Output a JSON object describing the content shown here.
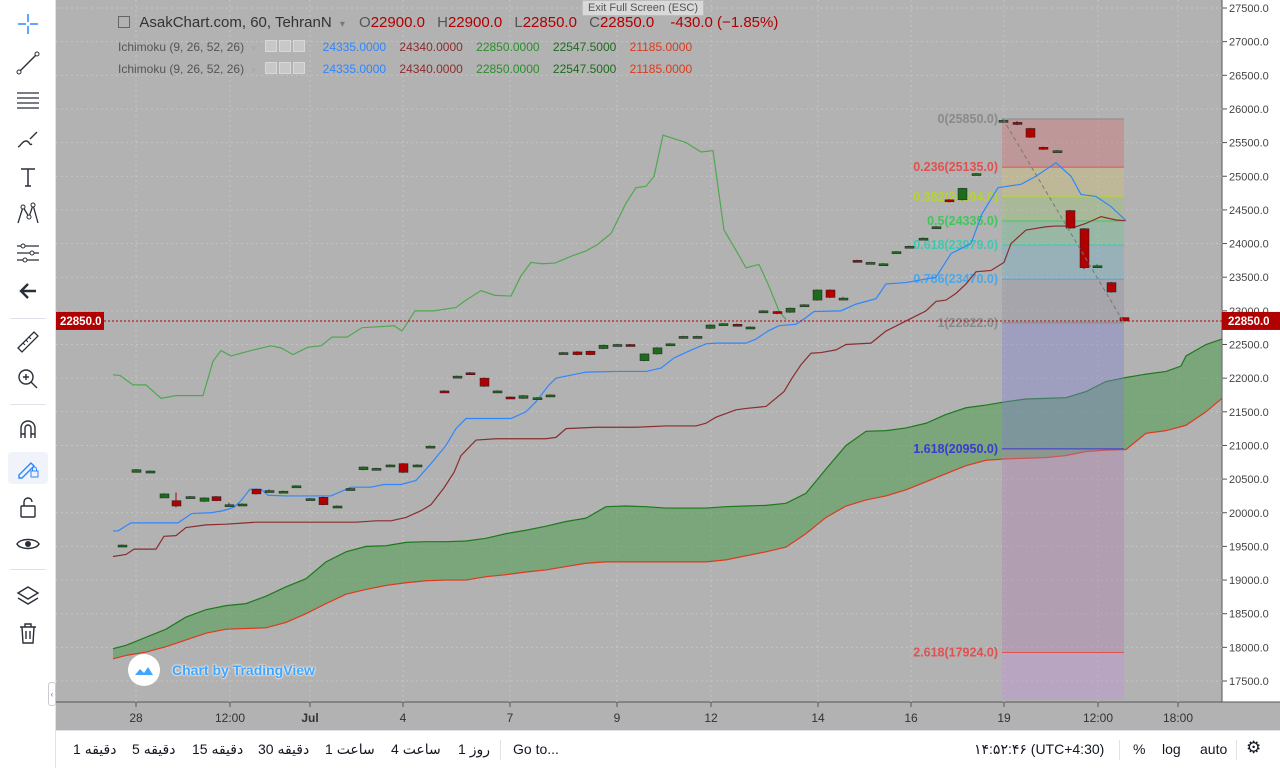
{
  "fullscreen_tip": "Exit Full Screen (ESC)",
  "legend": {
    "symbol": "AsakChart.com, 60, TehranN",
    "o_label": "O",
    "o_value": "22900.0",
    "h_label": "H",
    "h_value": "22900.0",
    "l_label": "L",
    "l_value": "22850.0",
    "c_label": "C",
    "c_value": "22850.0",
    "change": "-430.0 (−1.85%)",
    "indicators": [
      {
        "name": "Ichimoku (9, 26, 52, 26)",
        "v1": "24335.0000",
        "v2": "24340.0000",
        "v3": "22850.0000",
        "v4": "22547.5000",
        "v5": "21185.0000"
      },
      {
        "name": "Ichimoku (9, 26, 52, 26)",
        "v1": "24335.0000",
        "v2": "24340.0000",
        "v3": "22850.0000",
        "v4": "22547.5000",
        "v5": "21185.0000"
      }
    ]
  },
  "colors": {
    "background": "#b2b2b2",
    "bull": "#1e6b1e",
    "bear": "#b00000",
    "conversion": "#2f86ff",
    "base": "#8b2d2d",
    "lagging": "#4fa84f",
    "span_a": "#1d7a1d",
    "span_b": "#dd3a1c",
    "cloud": "#4f9a4f",
    "price_line": "#b00000"
  },
  "price_axis": [
    "27500.0",
    "27000.0",
    "26500.0",
    "26000.0",
    "25500.0",
    "25000.0",
    "24500.0",
    "24000.0",
    "23500.0",
    "23000.0",
    "22500.0",
    "22000.0",
    "21500.0",
    "21000.0",
    "20500.0",
    "20000.0",
    "19500.0",
    "19000.0",
    "18500.0",
    "18000.0",
    "17500.0"
  ],
  "current_price": "22850.0",
  "time_axis": [
    "28",
    "12:00",
    "Jul",
    "4",
    "7",
    "9",
    "12",
    "14",
    "16",
    "19",
    "12:00",
    "18:00"
  ],
  "fib_levels": [
    {
      "ratio": "0",
      "price": "25850.0",
      "label": "0(25850.0)",
      "color": "#8a8a8a"
    },
    {
      "ratio": "0.236",
      "price": "25135.0",
      "label": "0.236(25135.0)",
      "color": "#e25050"
    },
    {
      "ratio": "0.382",
      "price": "24694.0",
      "label": "0.382(24694.0)",
      "color": "#b5d430"
    },
    {
      "ratio": "0.5",
      "price": "24335.0",
      "label": "0.5(24335.0)",
      "color": "#3fc85a"
    },
    {
      "ratio": "0.618",
      "price": "23979.0",
      "label": "0.618(23979.0)",
      "color": "#3fc8b0"
    },
    {
      "ratio": "0.786",
      "price": "23470.0",
      "label": "0.786(23470.0)",
      "color": "#4aa8e8"
    },
    {
      "ratio": "1",
      "price": "22822.0",
      "label": "1(22822.0)",
      "color": "#8a8a8a"
    },
    {
      "ratio": "1.618",
      "price": "20950.0",
      "label": "1.618(20950.0)",
      "color": "#3a3ad0"
    },
    {
      "ratio": "2.618",
      "price": "17924.0",
      "label": "2.618(17924.0)",
      "color": "#e25050"
    }
  ],
  "badge": "Chart by TradingView",
  "bottom": {
    "intervals": [
      "1 دقیقه",
      "5 دقیقه",
      "15 دقیقه",
      "30 دقیقه",
      "1 ساعت",
      "4 ساعت",
      "1 روز"
    ],
    "goto": "Go to...",
    "clock": "۱۴:۵۲:۴۶ (UTC+4:30)",
    "percent": "%",
    "log": "log",
    "auto": "auto"
  },
  "toolbar_icons": [
    "crosshair-icon",
    "trend-line-icon",
    "horizontal-lines-icon",
    "brush-icon",
    "text-icon",
    "pattern-icon",
    "fib-icon",
    "back-arrow-icon",
    "ruler-icon",
    "zoom-in-icon",
    "magnet-icon",
    "lock-draw-icon",
    "unlock-icon",
    "eye-icon",
    "layers-icon",
    "trash-icon"
  ]
}
